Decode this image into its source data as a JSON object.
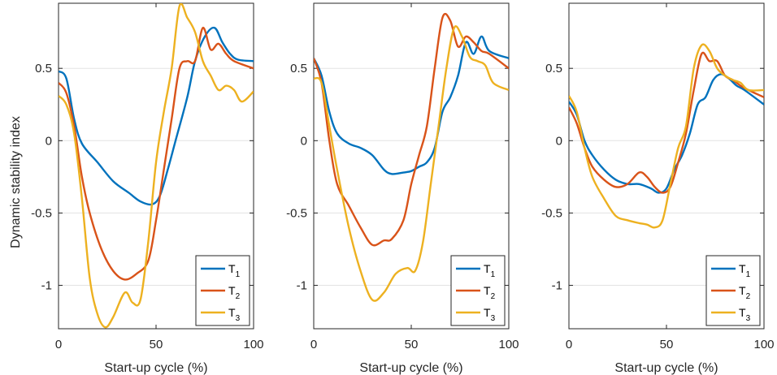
{
  "chart_data": [
    {
      "type": "line",
      "xlabel": "Start-up cycle (%)",
      "ylabel": "Dynamic stability index",
      "xlim": [
        0,
        100
      ],
      "ylim": [
        -1.3,
        0.95
      ],
      "xticks": [
        "0",
        "50",
        "100"
      ],
      "yticks": [
        "0.5",
        "0",
        "-0.5",
        "-1"
      ],
      "grid": "horizontal",
      "legend": "bottom-right",
      "series": [
        {
          "name": "T",
          "sub": "1",
          "color": "#0072BD",
          "x": [
            0,
            4,
            8,
            12,
            20,
            28,
            36,
            42,
            48,
            52,
            56,
            60,
            66,
            70,
            75,
            80,
            84,
            88,
            92,
            100
          ],
          "y": [
            0.48,
            0.43,
            0.15,
            -0.02,
            -0.15,
            -0.28,
            -0.36,
            -0.42,
            -0.44,
            -0.38,
            -0.2,
            0.0,
            0.3,
            0.55,
            0.72,
            0.78,
            0.68,
            0.6,
            0.56,
            0.55
          ]
        },
        {
          "name": "T",
          "sub": "2",
          "color": "#D95319",
          "x": [
            0,
            4,
            8,
            12,
            16,
            22,
            28,
            34,
            40,
            46,
            50,
            54,
            58,
            62,
            66,
            70,
            74,
            78,
            82,
            86,
            90,
            100
          ],
          "y": [
            0.4,
            0.33,
            0.1,
            -0.25,
            -0.5,
            -0.75,
            -0.9,
            -0.96,
            -0.92,
            -0.83,
            -0.55,
            -0.2,
            0.15,
            0.5,
            0.55,
            0.55,
            0.78,
            0.63,
            0.67,
            0.6,
            0.55,
            0.5
          ]
        },
        {
          "name": "T",
          "sub": "3",
          "color": "#EDB120",
          "x": [
            0,
            4,
            8,
            12,
            16,
            20,
            24,
            28,
            34,
            38,
            42,
            46,
            50,
            54,
            58,
            62,
            66,
            70,
            74,
            78,
            82,
            86,
            90,
            94,
            100
          ],
          "y": [
            0.31,
            0.25,
            0.05,
            -0.4,
            -0.95,
            -1.2,
            -1.29,
            -1.22,
            -1.05,
            -1.12,
            -1.1,
            -0.7,
            -0.15,
            0.2,
            0.5,
            0.93,
            0.85,
            0.75,
            0.55,
            0.45,
            0.35,
            0.38,
            0.35,
            0.27,
            0.34
          ]
        }
      ]
    },
    {
      "type": "line",
      "xlabel": "Start-up cycle (%)",
      "ylabel": "",
      "xlim": [
        0,
        100
      ],
      "ylim": [
        -1.3,
        0.95
      ],
      "xticks": [
        "0",
        "50",
        "100"
      ],
      "yticks": [
        "0.5",
        "0",
        "-0.5",
        "-1"
      ],
      "grid": "horizontal",
      "legend": "bottom-right",
      "series": [
        {
          "name": "T",
          "sub": "1",
          "color": "#0072BD",
          "x": [
            0,
            4,
            8,
            12,
            18,
            24,
            30,
            36,
            40,
            46,
            50,
            54,
            58,
            62,
            66,
            70,
            74,
            78,
            82,
            86,
            90,
            100
          ],
          "y": [
            0.57,
            0.45,
            0.2,
            0.05,
            -0.02,
            -0.05,
            -0.1,
            -0.2,
            -0.23,
            -0.22,
            -0.21,
            -0.18,
            -0.15,
            -0.05,
            0.2,
            0.3,
            0.45,
            0.68,
            0.6,
            0.72,
            0.62,
            0.57
          ]
        },
        {
          "name": "T",
          "sub": "2",
          "color": "#D95319",
          "x": [
            0,
            4,
            8,
            12,
            18,
            24,
            30,
            36,
            40,
            46,
            50,
            54,
            58,
            62,
            66,
            70,
            74,
            78,
            82,
            86,
            90,
            100
          ],
          "y": [
            0.57,
            0.4,
            0.0,
            -0.3,
            -0.45,
            -0.6,
            -0.72,
            -0.69,
            -0.68,
            -0.55,
            -0.3,
            -0.1,
            0.1,
            0.5,
            0.85,
            0.83,
            0.65,
            0.72,
            0.68,
            0.62,
            0.6,
            0.5
          ]
        },
        {
          "name": "T",
          "sub": "3",
          "color": "#EDB120",
          "x": [
            0,
            4,
            8,
            12,
            18,
            24,
            30,
            36,
            42,
            48,
            52,
            56,
            60,
            64,
            68,
            72,
            76,
            80,
            84,
            88,
            92,
            100
          ],
          "y": [
            0.43,
            0.4,
            0.1,
            -0.2,
            -0.6,
            -0.9,
            -1.1,
            -1.05,
            -0.92,
            -0.88,
            -0.9,
            -0.7,
            -0.3,
            0.1,
            0.5,
            0.78,
            0.72,
            0.58,
            0.55,
            0.52,
            0.4,
            0.35
          ]
        }
      ]
    },
    {
      "type": "line",
      "xlabel": "Start-up cycle (%)",
      "ylabel": "",
      "xlim": [
        0,
        100
      ],
      "ylim": [
        -1.3,
        0.95
      ],
      "xticks": [
        "0",
        "50",
        "100"
      ],
      "yticks": [
        "0.5",
        "0",
        "-0.5",
        "-1"
      ],
      "grid": "horizontal",
      "legend": "bottom-right",
      "series": [
        {
          "name": "T",
          "sub": "1",
          "color": "#0072BD",
          "x": [
            0,
            4,
            8,
            12,
            18,
            24,
            30,
            36,
            42,
            46,
            50,
            54,
            58,
            62,
            66,
            70,
            74,
            78,
            82,
            86,
            90,
            100
          ],
          "y": [
            0.27,
            0.18,
            0.0,
            -0.1,
            -0.2,
            -0.27,
            -0.3,
            -0.3,
            -0.33,
            -0.36,
            -0.33,
            -0.2,
            -0.1,
            0.05,
            0.25,
            0.3,
            0.42,
            0.46,
            0.43,
            0.38,
            0.35,
            0.25
          ]
        },
        {
          "name": "T",
          "sub": "2",
          "color": "#D95319",
          "x": [
            0,
            4,
            8,
            12,
            18,
            24,
            30,
            36,
            40,
            44,
            48,
            52,
            56,
            60,
            64,
            68,
            72,
            76,
            80,
            84,
            88,
            92,
            100
          ],
          "y": [
            0.23,
            0.12,
            -0.05,
            -0.18,
            -0.27,
            -0.32,
            -0.3,
            -0.22,
            -0.25,
            -0.32,
            -0.36,
            -0.32,
            -0.15,
            0.05,
            0.35,
            0.6,
            0.55,
            0.55,
            0.45,
            0.42,
            0.38,
            0.35,
            0.3
          ]
        },
        {
          "name": "T",
          "sub": "3",
          "color": "#EDB120",
          "x": [
            0,
            4,
            8,
            12,
            18,
            24,
            30,
            36,
            40,
            44,
            48,
            52,
            56,
            60,
            64,
            68,
            72,
            76,
            80,
            84,
            88,
            92,
            100
          ],
          "y": [
            0.31,
            0.2,
            -0.05,
            -0.25,
            -0.4,
            -0.52,
            -0.55,
            -0.57,
            -0.58,
            -0.6,
            -0.55,
            -0.3,
            -0.05,
            0.1,
            0.5,
            0.66,
            0.62,
            0.5,
            0.45,
            0.42,
            0.4,
            0.35,
            0.35
          ]
        }
      ]
    }
  ]
}
